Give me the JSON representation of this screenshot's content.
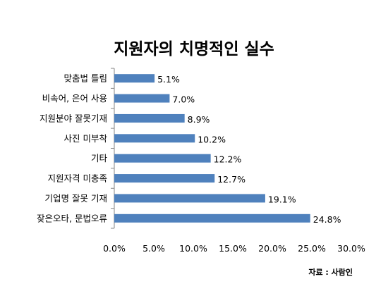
{
  "chart_data": {
    "type": "bar",
    "orientation": "horizontal",
    "title": "지원자의 치명적인 실수",
    "categories": [
      "맞춤법 틀림",
      "비속어, 은어 사용",
      "지원분야 잘못기재",
      "사진 미부착",
      "기타",
      "지원자격 미충족",
      "기업명 잘못 기재",
      "잦은오타, 문법오류"
    ],
    "values": [
      5.1,
      7.0,
      8.9,
      10.2,
      12.2,
      12.7,
      19.1,
      24.8
    ],
    "value_labels": [
      "5.1%",
      "7.0%",
      "8.9%",
      "10.2%",
      "12.2%",
      "12.7%",
      "19.1%",
      "24.8%"
    ],
    "xlim": [
      0,
      30
    ],
    "x_ticks": [
      "0.0%",
      "5.0%",
      "10.0%",
      "15.0%",
      "20.0%",
      "25.0%",
      "30.0%"
    ],
    "grid": false,
    "legend": "none",
    "bar_color": "#4F81BD"
  },
  "source": "자료 : 사람인"
}
